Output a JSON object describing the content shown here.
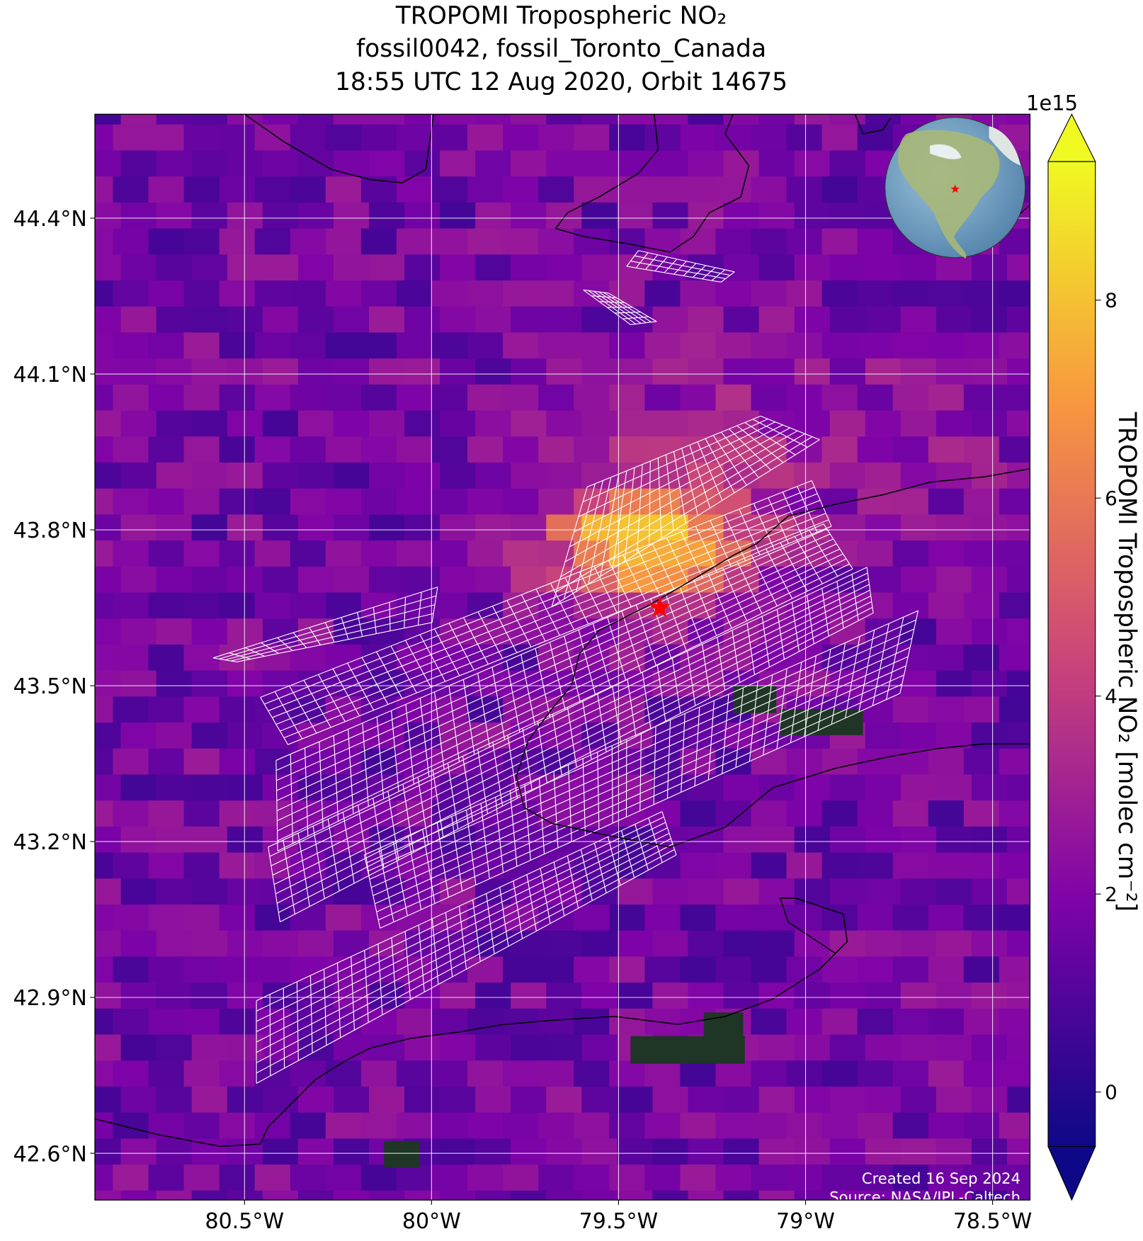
{
  "map": {
    "title": [
      "TROPOMI Tropospheric NO₂",
      "fossil0042, fossil_Toronto_Canada",
      "18:55 UTC 12 Aug 2020, Orbit 14675"
    ],
    "xlim": [
      -80.9,
      -78.4
    ],
    "ylim": [
      42.51,
      44.6
    ],
    "lon_ticks": [
      {
        "value": -80.5,
        "label": "80.5°W"
      },
      {
        "value": -80,
        "label": "80°W"
      },
      {
        "value": -79.5,
        "label": "79.5°W"
      },
      {
        "value": -79,
        "label": "79°W"
      },
      {
        "value": -78.5,
        "label": "78.5°W"
      }
    ],
    "lat_ticks": [
      {
        "value": 42.6,
        "label": "42.6°N"
      },
      {
        "value": 42.9,
        "label": "42.9°N"
      },
      {
        "value": 43.2,
        "label": "43.2°N"
      },
      {
        "value": 43.5,
        "label": "43.5°N"
      },
      {
        "value": 43.8,
        "label": "43.8°N"
      },
      {
        "value": 44.1,
        "label": "44.1°N"
      },
      {
        "value": 44.4,
        "label": "44.4°N"
      }
    ],
    "grid": true,
    "site": {
      "lon": -79.39,
      "lat": 43.65,
      "color": "#ff0000"
    },
    "colorbar": {
      "label": "TROPOMI Tropospheric NO₂ [molec cm⁻²]",
      "offset_label": "1e15",
      "lim": [
        -0.55,
        9.4
      ],
      "ticks": [
        0,
        2,
        4,
        6,
        8
      ],
      "colormap": "plasma",
      "extend": "both"
    },
    "credits": [
      "Created 16 Sep 2024",
      "Source: NASA/JPL-Caltech"
    ]
  }
}
